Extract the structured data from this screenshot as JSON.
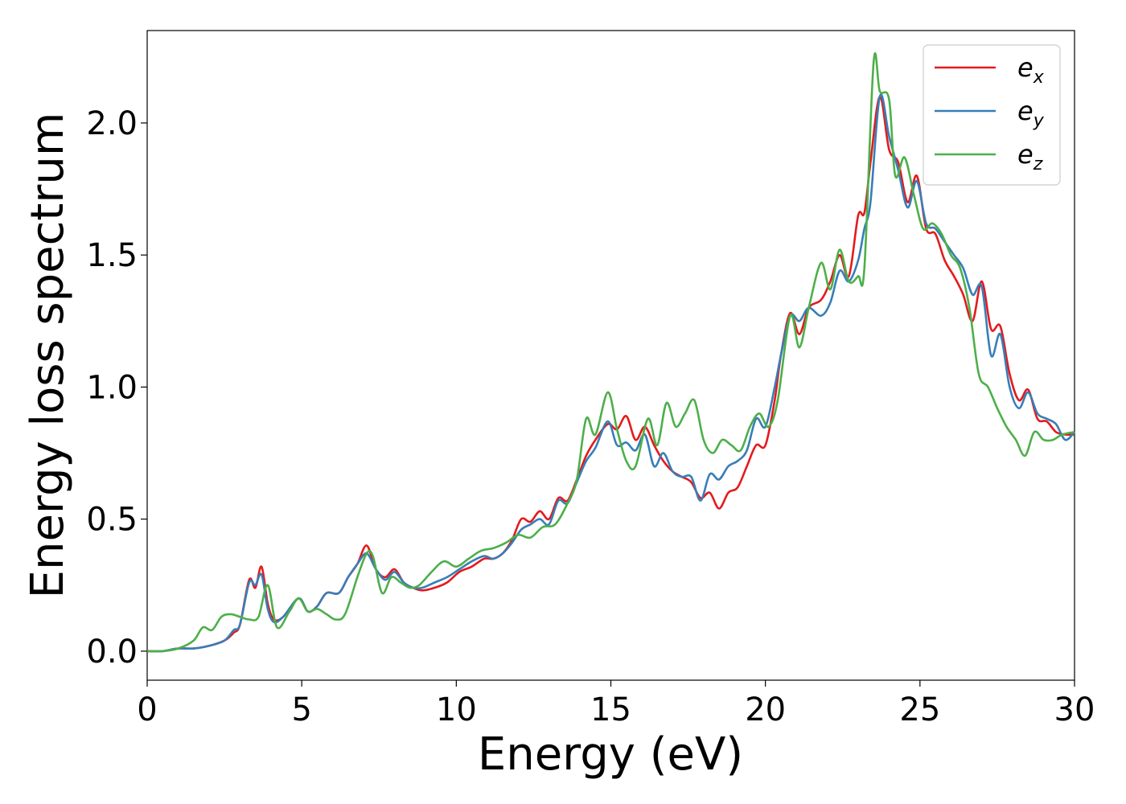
{
  "chart_data": {
    "type": "line",
    "xlabel": "Energy (eV)",
    "ylabel": "Energy loss spectrum",
    "xlim": [
      0,
      30
    ],
    "ylim": [
      -0.11,
      2.35
    ],
    "x_ticks": [
      "0",
      "5",
      "10",
      "15",
      "20",
      "25",
      "30"
    ],
    "y_ticks": [
      "0.0",
      "0.5",
      "1.0",
      "1.5",
      "2.0"
    ],
    "grid": false,
    "legend_position": "top-right",
    "series": [
      {
        "name": "e",
        "subscript": "x",
        "color": "#e41a1c",
        "x": [
          0,
          0.5,
          1,
          1.5,
          2,
          2.5,
          2.8,
          3.0,
          3.3,
          3.5,
          3.7,
          3.9,
          4.1,
          4.4,
          4.9,
          5.2,
          5.5,
          5.8,
          6.2,
          6.5,
          6.8,
          7.1,
          7.4,
          7.7,
          8.0,
          8.3,
          8.6,
          8.9,
          9.3,
          9.7,
          10.1,
          10.5,
          10.9,
          11.2,
          11.5,
          11.8,
          12.1,
          12.4,
          12.7,
          13.0,
          13.3,
          13.6,
          13.9,
          14.2,
          14.5,
          14.9,
          15.2,
          15.5,
          15.8,
          16.1,
          16.4,
          16.7,
          17.0,
          17.3,
          17.6,
          17.9,
          18.2,
          18.5,
          18.8,
          19.1,
          19.4,
          19.7,
          20.0,
          20.3,
          20.5,
          20.8,
          21.1,
          21.4,
          21.8,
          22.1,
          22.4,
          22.7,
          23.0,
          23.2,
          23.4,
          23.7,
          24.0,
          24.3,
          24.6,
          24.9,
          25.2,
          25.5,
          25.8,
          26.1,
          26.4,
          26.7,
          27.0,
          27.3,
          27.6,
          27.9,
          28.2,
          28.5,
          28.8,
          29.1,
          29.4,
          29.7,
          30.0
        ],
        "values": [
          0.0,
          0.0,
          0.01,
          0.01,
          0.02,
          0.04,
          0.07,
          0.1,
          0.27,
          0.24,
          0.32,
          0.18,
          0.12,
          0.13,
          0.2,
          0.15,
          0.17,
          0.22,
          0.22,
          0.28,
          0.33,
          0.4,
          0.31,
          0.28,
          0.31,
          0.26,
          0.24,
          0.23,
          0.24,
          0.26,
          0.3,
          0.32,
          0.35,
          0.35,
          0.37,
          0.42,
          0.5,
          0.49,
          0.53,
          0.5,
          0.58,
          0.57,
          0.65,
          0.74,
          0.8,
          0.86,
          0.84,
          0.89,
          0.8,
          0.85,
          0.78,
          0.72,
          0.68,
          0.66,
          0.64,
          0.58,
          0.6,
          0.54,
          0.6,
          0.62,
          0.7,
          0.78,
          0.78,
          0.95,
          1.12,
          1.28,
          1.2,
          1.3,
          1.33,
          1.4,
          1.5,
          1.42,
          1.65,
          1.66,
          1.85,
          2.1,
          1.9,
          1.85,
          1.7,
          1.8,
          1.6,
          1.58,
          1.48,
          1.42,
          1.35,
          1.25,
          1.4,
          1.22,
          1.23,
          1.05,
          0.95,
          0.99,
          0.88,
          0.87,
          0.83,
          0.82,
          0.82
        ]
      },
      {
        "name": "e",
        "subscript": "y",
        "color": "#377eb8",
        "x": [
          0,
          0.5,
          1,
          1.5,
          2,
          2.5,
          2.8,
          3.0,
          3.3,
          3.5,
          3.7,
          3.9,
          4.1,
          4.4,
          4.9,
          5.2,
          5.5,
          5.8,
          6.2,
          6.5,
          6.8,
          7.1,
          7.4,
          7.7,
          8.0,
          8.3,
          8.6,
          8.9,
          9.3,
          9.7,
          10.1,
          10.5,
          10.9,
          11.2,
          11.5,
          11.8,
          12.1,
          12.4,
          12.7,
          13.0,
          13.3,
          13.6,
          13.9,
          14.2,
          14.5,
          14.9,
          15.2,
          15.5,
          15.8,
          16.1,
          16.4,
          16.7,
          17.0,
          17.3,
          17.6,
          17.9,
          18.2,
          18.5,
          18.8,
          19.1,
          19.4,
          19.7,
          20.0,
          20.3,
          20.5,
          20.8,
          21.1,
          21.4,
          21.8,
          22.1,
          22.4,
          22.7,
          23.0,
          23.2,
          23.4,
          23.7,
          24.0,
          24.3,
          24.6,
          24.9,
          25.2,
          25.5,
          25.8,
          26.1,
          26.4,
          26.7,
          27.0,
          27.3,
          27.6,
          27.9,
          28.2,
          28.5,
          28.8,
          29.1,
          29.4,
          29.7,
          30.0
        ],
        "values": [
          0.0,
          0.0,
          0.01,
          0.01,
          0.02,
          0.04,
          0.08,
          0.1,
          0.26,
          0.25,
          0.29,
          0.16,
          0.11,
          0.13,
          0.2,
          0.15,
          0.17,
          0.22,
          0.22,
          0.28,
          0.33,
          0.37,
          0.31,
          0.27,
          0.3,
          0.26,
          0.24,
          0.24,
          0.26,
          0.28,
          0.31,
          0.34,
          0.36,
          0.35,
          0.37,
          0.41,
          0.46,
          0.48,
          0.5,
          0.48,
          0.57,
          0.56,
          0.64,
          0.72,
          0.77,
          0.87,
          0.78,
          0.79,
          0.76,
          0.82,
          0.7,
          0.75,
          0.68,
          0.66,
          0.66,
          0.57,
          0.67,
          0.65,
          0.7,
          0.72,
          0.76,
          0.88,
          0.85,
          1.0,
          1.12,
          1.27,
          1.25,
          1.3,
          1.27,
          1.32,
          1.44,
          1.4,
          1.48,
          1.6,
          1.7,
          2.1,
          1.95,
          1.82,
          1.68,
          1.78,
          1.62,
          1.6,
          1.55,
          1.5,
          1.45,
          1.35,
          1.38,
          1.12,
          1.2,
          1.0,
          0.92,
          0.98,
          0.9,
          0.88,
          0.86,
          0.8,
          0.83
        ]
      },
      {
        "name": "e",
        "subscript": "z",
        "color": "#4daf4a",
        "x": [
          0,
          0.5,
          1,
          1.5,
          1.8,
          2.1,
          2.4,
          2.7,
          3.0,
          3.3,
          3.6,
          3.9,
          4.2,
          4.6,
          4.9,
          5.2,
          5.5,
          5.8,
          6.1,
          6.4,
          6.8,
          7.1,
          7.3,
          7.6,
          7.9,
          8.2,
          8.5,
          8.8,
          9.2,
          9.6,
          10.0,
          10.4,
          10.8,
          11.2,
          11.6,
          12.0,
          12.4,
          12.8,
          13.2,
          13.6,
          13.9,
          14.2,
          14.5,
          14.9,
          15.2,
          15.5,
          15.8,
          16.2,
          16.5,
          16.8,
          17.1,
          17.4,
          17.7,
          18.0,
          18.3,
          18.6,
          18.9,
          19.2,
          19.5,
          19.8,
          20.1,
          20.4,
          20.8,
          21.1,
          21.4,
          21.8,
          22.1,
          22.4,
          22.7,
          23.0,
          23.2,
          23.5,
          23.7,
          24.0,
          24.2,
          24.5,
          24.8,
          25.1,
          25.4,
          25.7,
          26.0,
          26.3,
          26.6,
          26.9,
          27.2,
          27.5,
          27.8,
          28.1,
          28.4,
          28.7,
          29.0,
          29.3,
          29.6,
          30.0
        ],
        "values": [
          0.0,
          0.0,
          0.01,
          0.04,
          0.09,
          0.08,
          0.13,
          0.14,
          0.13,
          0.12,
          0.13,
          0.25,
          0.09,
          0.15,
          0.2,
          0.15,
          0.16,
          0.14,
          0.12,
          0.14,
          0.28,
          0.37,
          0.36,
          0.22,
          0.28,
          0.26,
          0.24,
          0.25,
          0.3,
          0.34,
          0.32,
          0.35,
          0.38,
          0.39,
          0.41,
          0.44,
          0.43,
          0.47,
          0.48,
          0.56,
          0.65,
          0.88,
          0.82,
          0.98,
          0.84,
          0.72,
          0.7,
          0.88,
          0.78,
          0.94,
          0.85,
          0.9,
          0.95,
          0.8,
          0.75,
          0.8,
          0.78,
          0.76,
          0.85,
          0.9,
          0.85,
          0.95,
          1.27,
          1.15,
          1.3,
          1.47,
          1.37,
          1.52,
          1.4,
          1.42,
          1.45,
          2.23,
          2.12,
          2.09,
          1.8,
          1.87,
          1.73,
          1.6,
          1.62,
          1.58,
          1.5,
          1.45,
          1.3,
          1.05,
          1.0,
          0.92,
          0.85,
          0.8,
          0.74,
          0.83,
          0.8,
          0.8,
          0.82,
          0.83
        ]
      }
    ]
  }
}
